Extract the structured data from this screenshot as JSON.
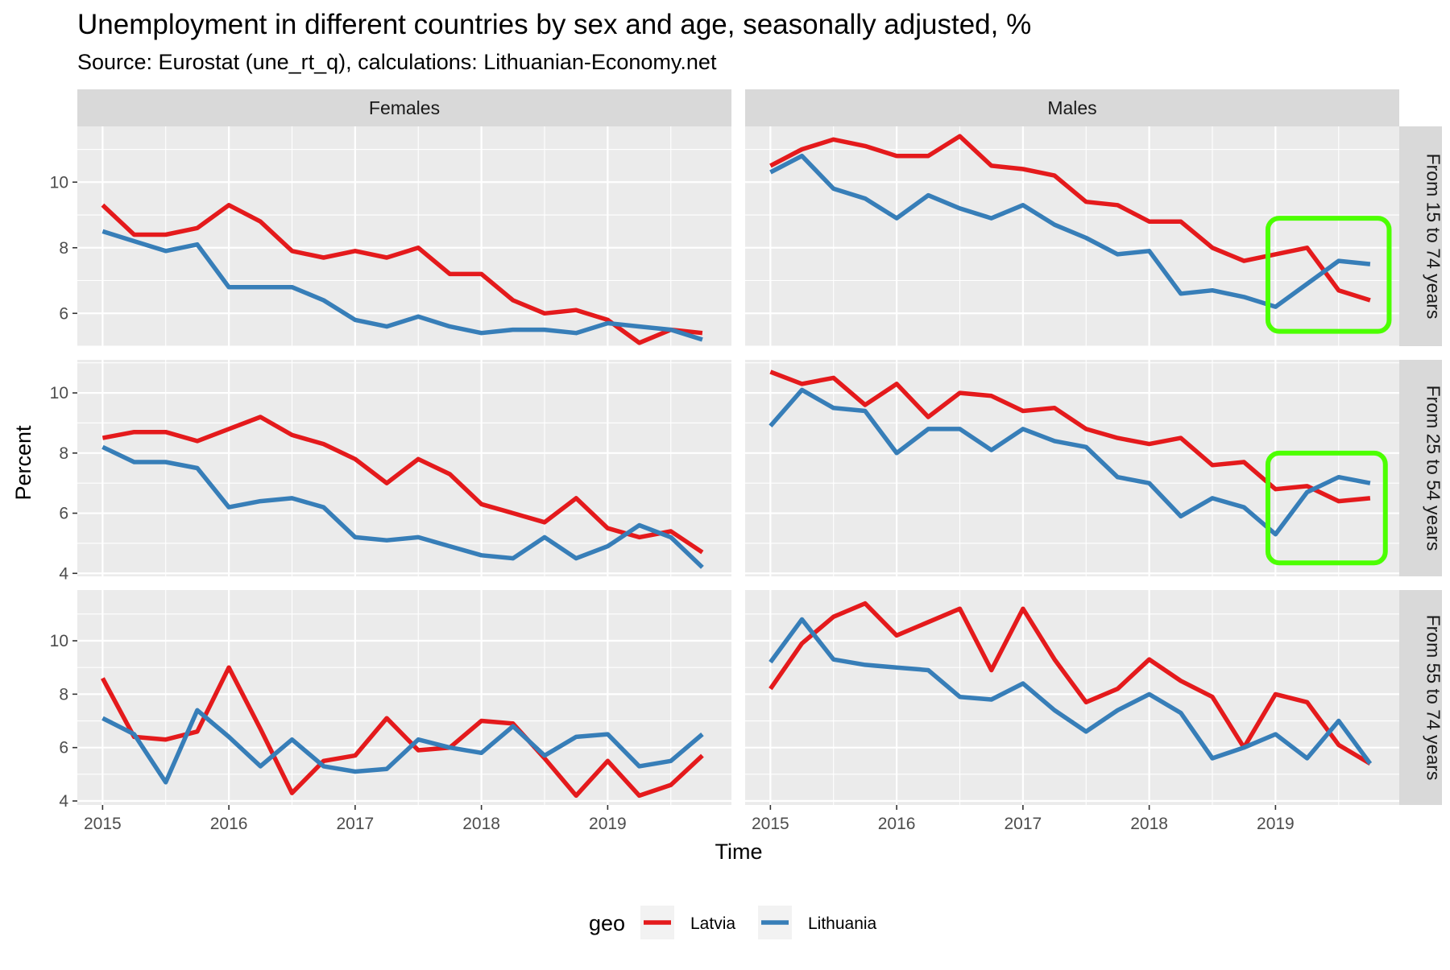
{
  "colors": {
    "latvia": "#E41A1C",
    "lithuania": "#377EB8",
    "highlight": "#4CFF00"
  },
  "chart_data": {
    "type": "line",
    "title": "Unemployment in different countries by sex and age, seasonally adjusted, %",
    "subtitle": "Source: Eurostat (une_rt_q), calculations: Lithuanian-Economy.net",
    "xlabel": "Time",
    "ylabel": "Percent",
    "x": [
      2015.0,
      2015.25,
      2015.5,
      2015.75,
      2016.0,
      2016.25,
      2016.5,
      2016.75,
      2017.0,
      2017.25,
      2017.5,
      2017.75,
      2018.0,
      2018.25,
      2018.5,
      2018.75,
      2019.0,
      2019.25,
      2019.5,
      2019.75
    ],
    "xlim": [
      2014.8,
      2019.98
    ],
    "x_ticks": [
      "2015",
      "2016",
      "2017",
      "2018",
      "2019"
    ],
    "columns": [
      "Females",
      "Males"
    ],
    "rows": [
      {
        "label": "From 15 to 74 years",
        "ylim": [
          5.0,
          11.7
        ],
        "y_ticks": [
          "6",
          "8",
          "10"
        ]
      },
      {
        "label": "From 25 to 54 years",
        "ylim": [
          3.9,
          11.1
        ],
        "y_ticks": [
          "4",
          "6",
          "8",
          "10"
        ]
      },
      {
        "label": "From 55 to 74 years",
        "ylim": [
          3.85,
          11.9
        ],
        "y_ticks": [
          "4",
          "6",
          "8",
          "10"
        ]
      }
    ],
    "legend": {
      "title": "geo",
      "position": "bottom",
      "entries": [
        {
          "name": "Latvia",
          "color_key": "latvia"
        },
        {
          "name": "Lithuania",
          "color_key": "lithuania"
        }
      ]
    },
    "panels": [
      {
        "row": 0,
        "col": 0,
        "series": [
          {
            "name": "Latvia",
            "values": [
              9.3,
              8.4,
              8.4,
              8.6,
              9.3,
              8.8,
              7.9,
              7.7,
              7.9,
              7.7,
              8.0,
              7.2,
              7.2,
              6.4,
              6.0,
              6.1,
              5.8,
              5.1,
              5.5,
              5.4
            ]
          },
          {
            "name": "Lithuania",
            "values": [
              8.5,
              8.2,
              7.9,
              8.1,
              6.8,
              6.8,
              6.8,
              6.4,
              5.8,
              5.6,
              5.9,
              5.6,
              5.4,
              5.5,
              5.5,
              5.4,
              5.7,
              5.6,
              5.5,
              5.2
            ]
          }
        ]
      },
      {
        "row": 0,
        "col": 1,
        "series": [
          {
            "name": "Latvia",
            "values": [
              10.5,
              11.0,
              11.3,
              11.1,
              10.8,
              10.8,
              11.4,
              10.5,
              10.4,
              10.2,
              9.4,
              9.3,
              8.8,
              8.8,
              8.0,
              7.6,
              7.8,
              8.0,
              6.7,
              6.4
            ]
          },
          {
            "name": "Lithuania",
            "values": [
              10.3,
              10.8,
              9.8,
              9.5,
              8.9,
              9.6,
              9.2,
              8.9,
              9.3,
              8.7,
              8.3,
              7.8,
              7.9,
              6.6,
              6.7,
              6.5,
              6.2,
              6.9,
              7.6,
              7.5
            ]
          }
        ],
        "highlight": {
          "x_from": 2018.94,
          "x_to": 2019.9,
          "y_from": 5.45,
          "y_to": 8.9
        }
      },
      {
        "row": 1,
        "col": 0,
        "series": [
          {
            "name": "Latvia",
            "values": [
              8.5,
              8.7,
              8.7,
              8.4,
              8.8,
              9.2,
              8.6,
              8.3,
              7.8,
              7.0,
              7.8,
              7.3,
              6.3,
              6.0,
              5.7,
              6.5,
              5.5,
              5.2,
              5.4,
              4.7
            ]
          },
          {
            "name": "Lithuania",
            "values": [
              8.2,
              7.7,
              7.7,
              7.5,
              6.2,
              6.4,
              6.5,
              6.2,
              5.2,
              5.1,
              5.2,
              4.9,
              4.6,
              4.5,
              5.2,
              4.5,
              4.9,
              5.6,
              5.2,
              4.2
            ]
          }
        ]
      },
      {
        "row": 1,
        "col": 1,
        "series": [
          {
            "name": "Latvia",
            "values": [
              10.7,
              10.3,
              10.5,
              9.6,
              10.3,
              9.2,
              10.0,
              9.9,
              9.4,
              9.5,
              8.8,
              8.5,
              8.3,
              8.5,
              7.6,
              7.7,
              6.8,
              6.9,
              6.4,
              6.5
            ]
          },
          {
            "name": "Lithuania",
            "values": [
              8.9,
              10.1,
              9.5,
              9.4,
              8.0,
              8.8,
              8.8,
              8.1,
              8.8,
              8.4,
              8.2,
              7.2,
              7.0,
              5.9,
              6.5,
              6.2,
              5.3,
              6.7,
              7.2,
              7.0
            ]
          }
        ],
        "highlight": {
          "x_from": 2018.94,
          "x_to": 2019.87,
          "y_from": 4.35,
          "y_to": 8.0
        }
      },
      {
        "row": 2,
        "col": 0,
        "series": [
          {
            "name": "Latvia",
            "values": [
              8.6,
              6.4,
              6.3,
              6.6,
              9.0,
              6.7,
              4.3,
              5.5,
              5.7,
              7.1,
              5.9,
              6.0,
              7.0,
              6.9,
              5.6,
              4.2,
              5.5,
              4.2,
              4.6,
              5.7
            ]
          },
          {
            "name": "Lithuania",
            "values": [
              7.1,
              6.5,
              4.7,
              7.4,
              6.4,
              5.3,
              6.3,
              5.3,
              5.1,
              5.2,
              6.3,
              6.0,
              5.8,
              6.8,
              5.7,
              6.4,
              6.5,
              5.3,
              5.5,
              6.5
            ]
          }
        ]
      },
      {
        "row": 2,
        "col": 1,
        "series": [
          {
            "name": "Latvia",
            "values": [
              8.2,
              9.9,
              10.9,
              11.4,
              10.2,
              10.7,
              11.2,
              8.9,
              11.2,
              9.3,
              7.7,
              8.2,
              9.3,
              8.5,
              7.9,
              6.0,
              8.0,
              7.7,
              6.1,
              5.4
            ]
          },
          {
            "name": "Lithuania",
            "values": [
              9.2,
              10.8,
              9.3,
              9.1,
              9.0,
              8.9,
              7.9,
              7.8,
              8.4,
              7.4,
              6.6,
              7.4,
              8.0,
              7.3,
              5.6,
              6.0,
              6.5,
              5.6,
              7.0,
              5.4
            ]
          }
        ]
      }
    ]
  }
}
